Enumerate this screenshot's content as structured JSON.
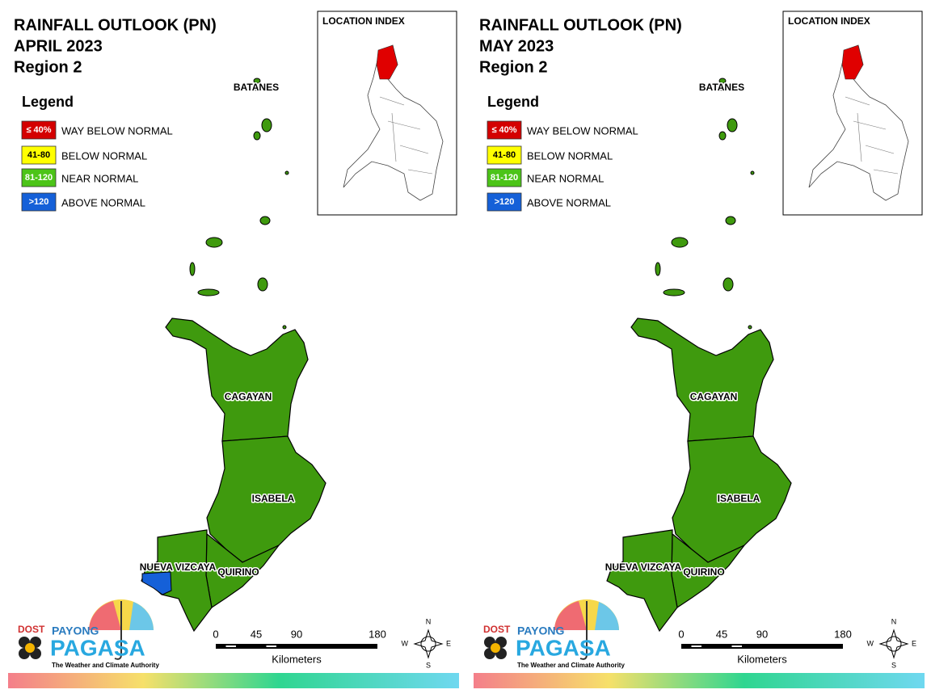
{
  "panels": [
    {
      "title": "RAINFALL OUTLOOK (PN)",
      "period": "APRIL 2023",
      "region": "Region 2",
      "legend": {
        "title": "Legend",
        "items": [
          {
            "swatch": "≤ 40%",
            "label": "WAY BELOW NORMAL",
            "color": "#d40000"
          },
          {
            "swatch": "41-80",
            "label": "BELOW NORMAL",
            "color": "#ffff00"
          },
          {
            "swatch": "81-120",
            "label": "NEAR NORMAL",
            "color": "#4cc418"
          },
          {
            "swatch": ">120",
            "label": "ABOVE NORMAL",
            "color": "#1560d8"
          }
        ]
      },
      "inset_title": "LOCATION INDEX",
      "provinces": [
        {
          "label": "BATANES",
          "color": "#3f9a0e"
        },
        {
          "label": "CAGAYAN",
          "color": "#3f9a0e"
        },
        {
          "label": "ISABELA",
          "color": "#3f9a0e"
        },
        {
          "label": "QUIRINO",
          "color": "#3f9a0e"
        },
        {
          "label": "NUEVA VIZCAYA",
          "color": "#3f9a0e",
          "sub_area_color": "#1560d8"
        }
      ],
      "scale": {
        "ticks": [
          0,
          45,
          90,
          180
        ],
        "unit": "Kilometers"
      },
      "compass": {
        "n": "N",
        "e": "E",
        "s": "S",
        "w": "W"
      },
      "logo": {
        "agency": "DOST",
        "brand": "PAYONG",
        "name": "PAGASA",
        "tagline": "The Weather and Climate Authority"
      }
    },
    {
      "title": "RAINFALL OUTLOOK (PN)",
      "period": "MAY 2023",
      "region": "Region 2",
      "legend": {
        "title": "Legend",
        "items": [
          {
            "swatch": "≤ 40%",
            "label": "WAY BELOW NORMAL",
            "color": "#d40000"
          },
          {
            "swatch": "41-80",
            "label": "BELOW NORMAL",
            "color": "#ffff00"
          },
          {
            "swatch": "81-120",
            "label": "NEAR NORMAL",
            "color": "#4cc418"
          },
          {
            "swatch": ">120",
            "label": "ABOVE NORMAL",
            "color": "#1560d8"
          }
        ]
      },
      "inset_title": "LOCATION INDEX",
      "provinces": [
        {
          "label": "BATANES",
          "color": "#3f9a0e"
        },
        {
          "label": "CAGAYAN",
          "color": "#3f9a0e"
        },
        {
          "label": "ISABELA",
          "color": "#3f9a0e"
        },
        {
          "label": "QUIRINO",
          "color": "#3f9a0e"
        },
        {
          "label": "NUEVA VIZCAYA",
          "color": "#3f9a0e"
        }
      ],
      "scale": {
        "ticks": [
          0,
          45,
          90,
          180
        ],
        "unit": "Kilometers"
      },
      "compass": {
        "n": "N",
        "e": "E",
        "s": "S",
        "w": "W"
      },
      "logo": {
        "agency": "DOST",
        "brand": "PAYONG",
        "name": "PAGASA",
        "tagline": "The Weather and Climate Authority"
      }
    }
  ]
}
